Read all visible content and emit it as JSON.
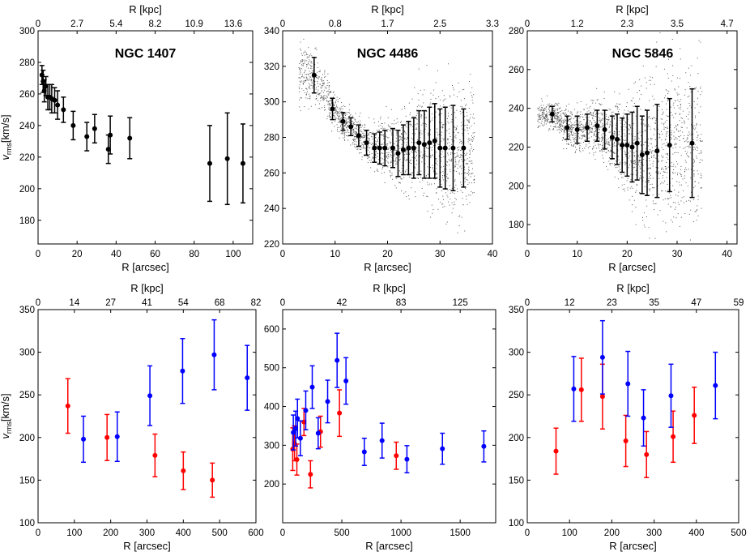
{
  "chart_data": [
    {
      "type": "scatter",
      "title": "NGC 1407",
      "xlabel": "R [arcsec]",
      "ylabel_main": "v",
      "ylabel_sub": "rms",
      "ylabel_unit": "[km/s]",
      "x2label": "R [kpc]",
      "xlim": [
        0,
        110
      ],
      "ylim": [
        165,
        300
      ],
      "xticks": [
        "0",
        "20",
        "40",
        "60",
        "80",
        "100"
      ],
      "xtick_values": [
        0,
        20,
        40,
        60,
        80,
        100
      ],
      "yticks": [
        "180",
        "200",
        "220",
        "240",
        "260",
        "280",
        "300"
      ],
      "ytick_values": [
        180,
        200,
        220,
        240,
        260,
        280,
        300
      ],
      "x2ticks": [
        "0",
        "2.7",
        "5.4",
        "8.2",
        "10.9",
        "13.6"
      ],
      "x2tick_values": [
        0,
        20,
        40,
        60,
        80,
        100
      ],
      "series": [
        {
          "color": "#000000",
          "points": [
            [
              2,
              272,
              6
            ],
            [
              2.6,
              268,
              7
            ],
            [
              3.2,
              262,
              7
            ],
            [
              4,
              265,
              6
            ],
            [
              5,
              258,
              8
            ],
            [
              6,
              258,
              8
            ],
            [
              7,
              257,
              9
            ],
            [
              8.5,
              256,
              8
            ],
            [
              10,
              253,
              9
            ],
            [
              13,
              250,
              8
            ],
            [
              18,
              240,
              9
            ],
            [
              25,
              233,
              9
            ],
            [
              29,
              238,
              9
            ],
            [
              36,
              225,
              9
            ],
            [
              37,
              234,
              12
            ],
            [
              47,
              232,
              13
            ],
            [
              88,
              216,
              24
            ],
            [
              97,
              219,
              29
            ],
            [
              105,
              216,
              25
            ]
          ]
        }
      ]
    },
    {
      "type": "scatter",
      "title": "NGC 4486",
      "xlabel": "R [arcsec]",
      "x2label": "R [kpc]",
      "xlim": [
        0,
        40
      ],
      "ylim": [
        220,
        340
      ],
      "xticks": [
        "0",
        "10",
        "20",
        "30",
        "40"
      ],
      "xtick_values": [
        0,
        10,
        20,
        30,
        40
      ],
      "yticks": [
        "220",
        "240",
        "260",
        "280",
        "300",
        "320",
        "340"
      ],
      "ytick_values": [
        220,
        240,
        260,
        280,
        300,
        320,
        340
      ],
      "x2ticks": [
        "0",
        "0.8",
        "1.7",
        "2.5",
        "3.3"
      ],
      "x2tick_values": [
        0,
        10,
        20,
        30,
        40
      ],
      "background_scatter": true,
      "series": [
        {
          "color": "#000000",
          "points": [
            [
              6,
              315,
              10
            ],
            [
              9.5,
              296,
              6
            ],
            [
              11.5,
              289,
              5
            ],
            [
              13,
              286,
              5
            ],
            [
              14.5,
              281,
              6
            ],
            [
              16,
              277,
              7
            ],
            [
              17.5,
              274,
              8
            ],
            [
              18.5,
              274,
              9
            ],
            [
              19.5,
              274,
              10
            ],
            [
              21,
              274,
              11
            ],
            [
              22,
              271,
              13
            ],
            [
              23,
              273,
              14
            ],
            [
              24,
              274,
              15
            ],
            [
              25,
              274,
              17
            ],
            [
              26,
              277,
              18
            ],
            [
              27,
              276,
              19
            ],
            [
              28,
              277,
              20
            ],
            [
              29,
              278,
              21
            ],
            [
              30,
              274,
              22
            ],
            [
              31,
              274,
              23
            ],
            [
              32.5,
              274,
              24
            ],
            [
              34.5,
              274,
              22
            ]
          ]
        }
      ]
    },
    {
      "type": "scatter",
      "title": "NGC 5846",
      "xlabel": "R [arcsec]",
      "x2label": "R [kpc]",
      "xlim": [
        0,
        42
      ],
      "ylim": [
        170,
        280
      ],
      "xticks": [
        "0",
        "10",
        "20",
        "30",
        "40"
      ],
      "xtick_values": [
        0,
        10,
        20,
        30,
        40
      ],
      "yticks": [
        "180",
        "200",
        "220",
        "240",
        "260",
        "280"
      ],
      "ytick_values": [
        180,
        200,
        220,
        240,
        260,
        280
      ],
      "x2ticks": [
        "0",
        "1.2",
        "2.3",
        "3.5",
        "4.7"
      ],
      "x2tick_values": [
        0,
        10,
        20,
        30,
        40
      ],
      "background_scatter": true,
      "series": [
        {
          "color": "#000000",
          "points": [
            [
              5,
              237,
              4
            ],
            [
              8,
              230,
              6
            ],
            [
              10,
              229,
              7
            ],
            [
              12,
              230,
              7
            ],
            [
              14,
              231,
              8
            ],
            [
              15.5,
              229,
              10
            ],
            [
              17,
              225,
              11
            ],
            [
              18,
              224,
              13
            ],
            [
              19,
              221,
              14
            ],
            [
              20,
              221,
              16
            ],
            [
              21,
              220,
              18
            ],
            [
              22,
              222,
              19
            ],
            [
              23,
              216,
              20
            ],
            [
              24,
              217,
              22
            ],
            [
              26,
              218,
              24
            ],
            [
              28.5,
              221,
              24
            ],
            [
              33,
              222,
              28
            ]
          ]
        }
      ]
    },
    {
      "type": "scatter",
      "xlabel": "R [arcsec]",
      "ylabel_main": "v",
      "ylabel_sub": "rms",
      "ylabel_unit": "[km/s]",
      "x2label": "R [kpc]",
      "xlim": [
        0,
        600
      ],
      "ylim": [
        100,
        350
      ],
      "xticks": [
        "0",
        "100",
        "200",
        "300",
        "400",
        "500",
        "600"
      ],
      "xtick_values": [
        0,
        100,
        200,
        300,
        400,
        500,
        600
      ],
      "yticks": [
        "100",
        "150",
        "200",
        "250",
        "300",
        "350"
      ],
      "ytick_values": [
        100,
        150,
        200,
        250,
        300,
        350
      ],
      "x2ticks": [
        "0",
        "14",
        "27",
        "41",
        "54",
        "68",
        "82"
      ],
      "x2tick_values": [
        0,
        100,
        200,
        300,
        400,
        500,
        600
      ],
      "series": [
        {
          "color": "#ff0000",
          "points": [
            [
              82,
              237,
              32
            ],
            [
              190,
              200,
              27
            ],
            [
              322,
              179,
              25
            ],
            [
              400,
              161,
              22
            ],
            [
              480,
              150,
              20
            ]
          ]
        },
        {
          "color": "#0000ff",
          "points": [
            [
              125,
              198,
              27
            ],
            [
              218,
              201,
              29
            ],
            [
              308,
              249,
              35
            ],
            [
              398,
              278,
              38
            ],
            [
              485,
              297,
              41
            ],
            [
              576,
              270,
              38
            ]
          ]
        }
      ]
    },
    {
      "type": "scatter",
      "xlabel": "R [arcsec]",
      "x2label": "R [kpc]",
      "xlim": [
        0,
        1800
      ],
      "ylim": [
        100,
        650
      ],
      "xticks": [
        "0",
        "500",
        "1000",
        "1500"
      ],
      "xtick_values": [
        0,
        500,
        1000,
        1500
      ],
      "yticks": [
        "200",
        "300",
        "400",
        "500",
        "600"
      ],
      "ytick_values": [
        200,
        300,
        400,
        500,
        600
      ],
      "x2ticks": [
        "0",
        "42",
        "83",
        "125"
      ],
      "x2tick_values": [
        0,
        500,
        1000,
        1500
      ],
      "series": [
        {
          "color": "#ff0000",
          "points": [
            [
              85,
              290,
              55
            ],
            [
              100,
              305,
              45
            ],
            [
              120,
              263,
              40
            ],
            [
              180,
              360,
              35
            ],
            [
              235,
              225,
              35
            ],
            [
              320,
              335,
              40
            ],
            [
              480,
              383,
              60
            ],
            [
              960,
              273,
              35
            ]
          ]
        },
        {
          "color": "#0000ff",
          "points": [
            [
              90,
              333,
              45
            ],
            [
              110,
              343,
              45
            ],
            [
              125,
              369,
              50
            ],
            [
              150,
              318,
              45
            ],
            [
              195,
              390,
              50
            ],
            [
              250,
              450,
              55
            ],
            [
              300,
              331,
              40
            ],
            [
              380,
              413,
              55
            ],
            [
              460,
              519,
              70
            ],
            [
              535,
              466,
              60
            ],
            [
              690,
              283,
              35
            ],
            [
              840,
              312,
              45
            ],
            [
              1050,
              264,
              35
            ],
            [
              1350,
              291,
              40
            ],
            [
              1700,
              297,
              40
            ]
          ]
        }
      ]
    },
    {
      "type": "scatter",
      "xlabel": "R [arcsec]",
      "x2label": "R [kpc]",
      "xlim": [
        0,
        500
      ],
      "ylim": [
        100,
        350
      ],
      "xticks": [
        "0",
        "100",
        "200",
        "300",
        "400",
        "500"
      ],
      "xtick_values": [
        0,
        100,
        200,
        300,
        400,
        500
      ],
      "yticks": [
        "100",
        "150",
        "200",
        "250",
        "300",
        "350"
      ],
      "ytick_values": [
        100,
        150,
        200,
        250,
        300,
        350
      ],
      "x2ticks": [
        "0",
        "12",
        "23",
        "35",
        "47",
        "59"
      ],
      "x2tick_values": [
        0,
        100,
        200,
        300,
        400,
        500
      ],
      "series": [
        {
          "color": "#ff0000",
          "points": [
            [
              68,
              184,
              27
            ],
            [
              128,
              256,
              37
            ],
            [
              178,
              248,
              38
            ],
            [
              233,
              196,
              30
            ],
            [
              282,
              180,
              27
            ],
            [
              345,
              201,
              30
            ],
            [
              395,
              226,
              33
            ]
          ]
        },
        {
          "color": "#0000ff",
          "points": [
            [
              110,
              257,
              38
            ],
            [
              178,
              294,
              43
            ],
            [
              238,
              263,
              38
            ],
            [
              275,
              223,
              33
            ],
            [
              340,
              249,
              37
            ],
            [
              445,
              261,
              39
            ]
          ]
        }
      ]
    }
  ]
}
